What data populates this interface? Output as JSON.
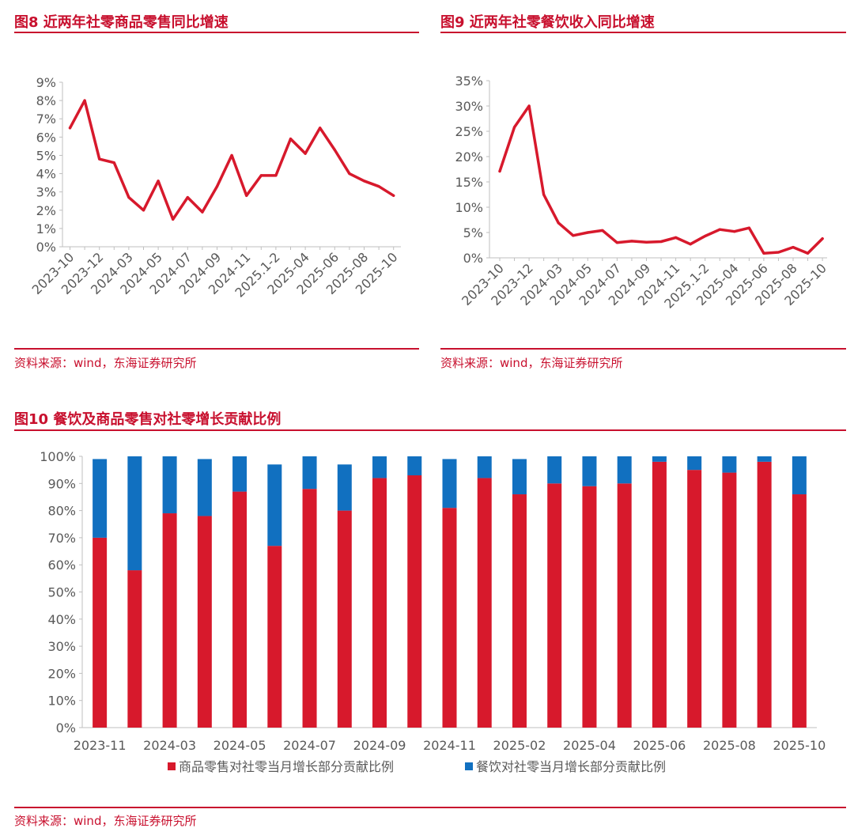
{
  "figure8": {
    "title": "图8  近两年社零商品零售同比增速",
    "source": "资料来源：wind，东海证券研究所",
    "chart_data": {
      "type": "line",
      "color": "#d7192c",
      "ylim": [
        0,
        9
      ],
      "yticks": [
        0,
        1,
        2,
        3,
        4,
        5,
        6,
        7,
        8,
        9
      ],
      "ytick_labels": [
        "0%",
        "1%",
        "2%",
        "3%",
        "4%",
        "5%",
        "6%",
        "7%",
        "8%",
        "9%"
      ],
      "xtick_labels": [
        "2023-10",
        "2023-12",
        "2024-03",
        "2024-05",
        "2024-07",
        "2024-09",
        "2024-11",
        "2025.1-2",
        "2025-04",
        "2025-06",
        "2025-08",
        "2025-10"
      ],
      "values": [
        6.5,
        8.0,
        4.8,
        4.6,
        2.7,
        2.0,
        3.6,
        1.5,
        2.7,
        1.9,
        3.3,
        5.0,
        2.8,
        3.9,
        3.9,
        5.9,
        5.1,
        6.5,
        5.3,
        4.0,
        3.6,
        3.3,
        2.8
      ]
    }
  },
  "figure9": {
    "title": "图9  近两年社零餐饮收入同比增速",
    "source": "资料来源：wind，东海证券研究所",
    "chart_data": {
      "type": "line",
      "color": "#d7192c",
      "ylim": [
        0,
        35
      ],
      "yticks": [
        0,
        5,
        10,
        15,
        20,
        25,
        30,
        35
      ],
      "ytick_labels": [
        "0%",
        "5%",
        "10%",
        "15%",
        "20%",
        "25%",
        "30%",
        "35%"
      ],
      "xtick_labels": [
        "2023-10",
        "2023-12",
        "2024-03",
        "2024-05",
        "2024-07",
        "2024-09",
        "2024-11",
        "2025.1-2",
        "2025-04",
        "2025-06",
        "2025-08",
        "2025-10"
      ],
      "values": [
        17.1,
        25.8,
        30.0,
        12.5,
        6.9,
        4.4,
        5.0,
        5.4,
        3.0,
        3.3,
        3.1,
        3.2,
        4.0,
        2.7,
        4.3,
        5.6,
        5.2,
        5.9,
        0.9,
        1.1,
        2.1,
        0.9,
        3.8
      ]
    }
  },
  "figure10": {
    "title": "图10  餐饮及商品零售对社零增长贡献比例",
    "source": "资料来源：wind，东海证券研究所",
    "chart_data": {
      "type": "bar",
      "stacked": true,
      "ylim": [
        0,
        100
      ],
      "yticks": [
        0,
        10,
        20,
        30,
        40,
        50,
        60,
        70,
        80,
        90,
        100
      ],
      "ytick_labels": [
        "0%",
        "10%",
        "20%",
        "30%",
        "40%",
        "50%",
        "60%",
        "70%",
        "80%",
        "90%",
        "100%"
      ],
      "xtick_labels": [
        "2023-11",
        "2024-03",
        "2024-05",
        "2024-07",
        "2024-09",
        "2024-11",
        "2025-02",
        "2025-04",
        "2025-06",
        "2025-08",
        "2025-10"
      ],
      "series": [
        {
          "name": "商品零售对社零当月增长部分贡献比例",
          "color": "#d7192c",
          "values": [
            70,
            58,
            79,
            78,
            87,
            67,
            88,
            80,
            92,
            93,
            81,
            92,
            86,
            90,
            89,
            90,
            98,
            95,
            94,
            98,
            86
          ]
        },
        {
          "name": "餐饮对社零当月增长部分贡献比例",
          "color": "#1170c0",
          "values": [
            29,
            42,
            21,
            21,
            13,
            30,
            12,
            17,
            8,
            7,
            18,
            8,
            13,
            10,
            11,
            10,
            2,
            5,
            6,
            2,
            14
          ]
        }
      ]
    }
  }
}
